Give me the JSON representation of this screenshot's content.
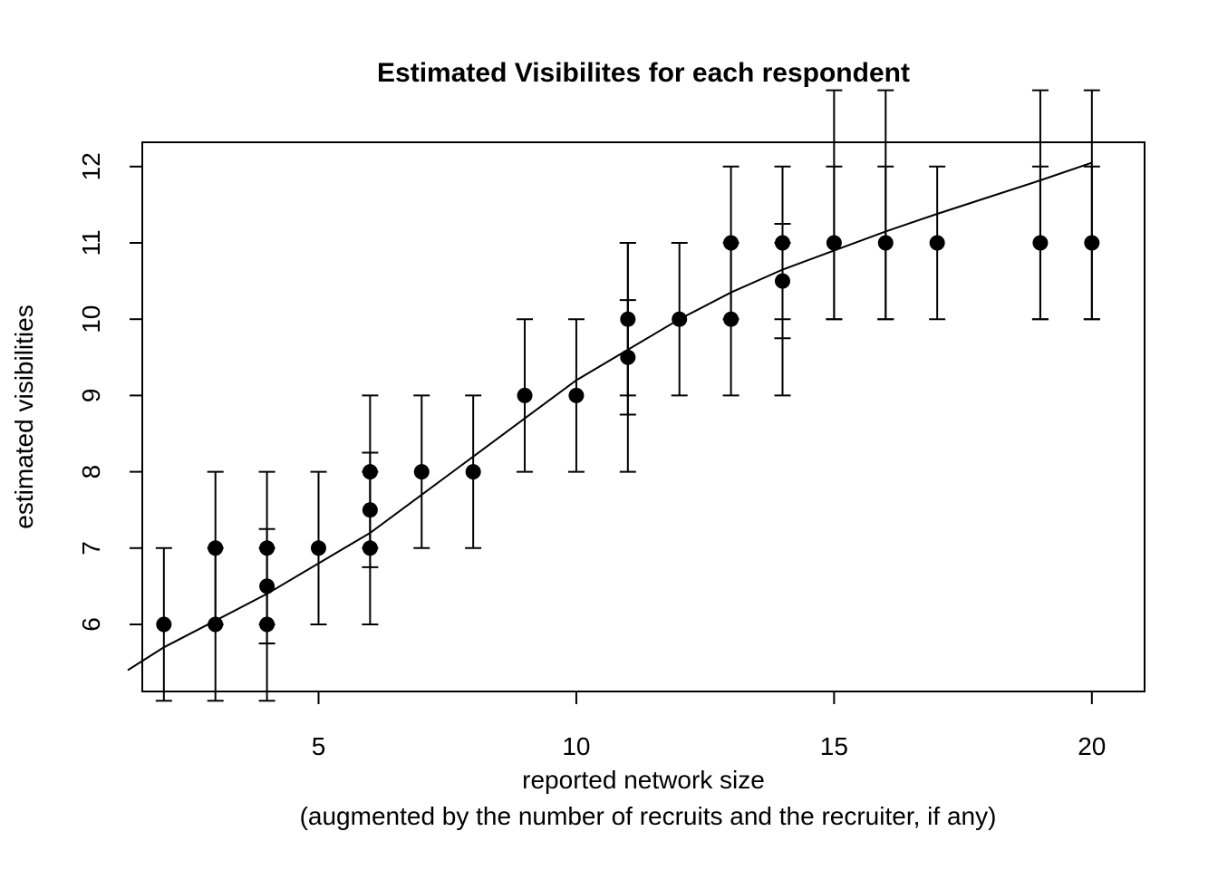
{
  "chart_data": {
    "type": "scatter",
    "title": "Estimated Visibilites for each respondent",
    "xlabel": "reported network size",
    "xlabel_sub": "(augmented by the number of recruits and the recruiter, if any)",
    "ylabel": "estimated visibilities",
    "xlim": [
      1.3,
      20.7
    ],
    "ylim": [
      5.1,
      12.3
    ],
    "x_ticks": [
      5,
      10,
      15,
      20
    ],
    "y_ticks": [
      6,
      7,
      8,
      9,
      10,
      11,
      12
    ],
    "grid": false,
    "legend": "none",
    "points": [
      {
        "x": 2,
        "y": 6,
        "lo": 5.0,
        "hi": 7
      },
      {
        "x": 3,
        "y": 6,
        "lo": 5.0,
        "hi": 7
      },
      {
        "x": 3,
        "y": 7,
        "lo": 6,
        "hi": 8
      },
      {
        "x": 4,
        "y": 6,
        "lo": 5.0,
        "hi": 7
      },
      {
        "x": 4,
        "y": 7,
        "lo": 6,
        "hi": 8
      },
      {
        "x": 4,
        "y": 6.5,
        "lo": 5.75,
        "hi": 7.25
      },
      {
        "x": 5,
        "y": 7,
        "lo": 6,
        "hi": 8
      },
      {
        "x": 6,
        "y": 7,
        "lo": 6,
        "hi": 8
      },
      {
        "x": 6,
        "y": 8,
        "lo": 7,
        "hi": 9
      },
      {
        "x": 6,
        "y": 7.5,
        "lo": 6.75,
        "hi": 8.25
      },
      {
        "x": 7,
        "y": 8,
        "lo": 7,
        "hi": 9
      },
      {
        "x": 8,
        "y": 8,
        "lo": 7,
        "hi": 9
      },
      {
        "x": 9,
        "y": 9,
        "lo": 8,
        "hi": 10
      },
      {
        "x": 10,
        "y": 9,
        "lo": 8,
        "hi": 10
      },
      {
        "x": 11,
        "y": 10,
        "lo": 9,
        "hi": 11
      },
      {
        "x": 11,
        "y": 10,
        "lo": 8,
        "hi": 11
      },
      {
        "x": 11,
        "y": 9.5,
        "lo": 8.75,
        "hi": 10.25
      },
      {
        "x": 12,
        "y": 10,
        "lo": 9,
        "hi": 11
      },
      {
        "x": 13,
        "y": 10,
        "lo": 9,
        "hi": 11
      },
      {
        "x": 13,
        "y": 11,
        "lo": 10,
        "hi": 12
      },
      {
        "x": 14,
        "y": 11,
        "lo": 10,
        "hi": 12
      },
      {
        "x": 14,
        "y": 10.5,
        "lo": 9.75,
        "hi": 11.25
      },
      {
        "x": 14,
        "y": 10.5,
        "lo": 9,
        "hi": 11
      },
      {
        "x": 15,
        "y": 11,
        "lo": 10,
        "hi": 12
      },
      {
        "x": 15,
        "y": 11,
        "lo": 10,
        "hi": 13
      },
      {
        "x": 16,
        "y": 11,
        "lo": 10,
        "hi": 12
      },
      {
        "x": 16,
        "y": 11,
        "lo": 10,
        "hi": 13
      },
      {
        "x": 17,
        "y": 11,
        "lo": 10,
        "hi": 12
      },
      {
        "x": 19,
        "y": 11,
        "lo": 10,
        "hi": 12
      },
      {
        "x": 19,
        "y": 11,
        "lo": 10,
        "hi": 13
      },
      {
        "x": 20,
        "y": 11,
        "lo": 10,
        "hi": 12
      },
      {
        "x": 20,
        "y": 11,
        "lo": 10,
        "hi": 13
      }
    ],
    "fit_line": {
      "x": [
        1.3,
        2,
        3,
        4,
        5,
        6,
        7,
        8,
        9,
        10,
        11,
        12,
        13,
        14,
        15,
        16,
        17,
        18,
        19,
        20
      ],
      "y": [
        5.4,
        5.7,
        6.05,
        6.4,
        6.8,
        7.2,
        7.7,
        8.2,
        8.7,
        9.2,
        9.6,
        10.0,
        10.35,
        10.65,
        10.9,
        11.15,
        11.38,
        11.6,
        11.82,
        12.05
      ]
    }
  }
}
